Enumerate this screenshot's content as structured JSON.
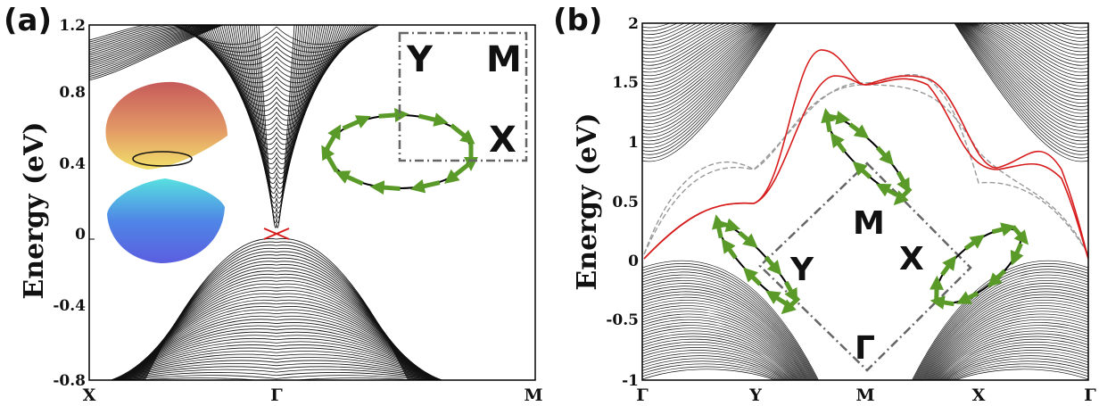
{
  "chart_data": [
    {
      "panel": "(a)",
      "type": "line",
      "ylabel": "Energy (eV)",
      "ylim": [
        -0.8,
        1.2
      ],
      "yticks": [
        "1.2",
        "0.8",
        "0.4",
        "0",
        "-0.4",
        "-0.8"
      ],
      "xticks": [
        "X",
        "Γ",
        "M"
      ],
      "series": [
        {
          "values_note": "bulk bands",
          "x": [
            0,
            0.2,
            0.38,
            0.42,
            0.47,
            0.5,
            0.53,
            0.58,
            0.62,
            0.8,
            1.0
          ],
          "y": [
            0.95,
            1.1,
            1.2,
            0.6,
            0.2,
            0.04,
            0.2,
            0.6,
            1.2,
            1.2,
            1.2
          ]
        },
        {
          "x": [
            0.11,
            0.25,
            0.4,
            0.47,
            0.5,
            0.53,
            0.6,
            0.75,
            0.9
          ],
          "y": [
            -0.8,
            -0.55,
            -0.2,
            -0.05,
            -0.02,
            -0.05,
            -0.2,
            -0.55,
            -0.8
          ]
        },
        {
          "x": [
            0.46,
            0.5,
            0.54
          ],
          "y": [
            0.04,
            -0.01,
            0.04
          ]
        },
        {
          "x": [
            0.46,
            0.5,
            0.54
          ],
          "y": [
            -0.04,
            -0.01,
            -0.04
          ]
        }
      ],
      "insets": {
        "bz_labels": [
          "Y",
          "M",
          "X"
        ]
      }
    },
    {
      "panel": "(b)",
      "type": "line",
      "ylabel": "Energy (eV)",
      "ylim": [
        -1,
        2
      ],
      "yticks": [
        "2",
        "1.5",
        "1",
        "0.5",
        "0",
        "-0.5",
        "-1"
      ],
      "xticks": [
        "Γ",
        "Y",
        "M",
        "X",
        "Γ"
      ],
      "series": [
        {
          "x": [
            0,
            0.25,
            0.5,
            0.75,
            1.0
          ],
          "y": [
            -0.05,
            0.45,
            1.45,
            0.75,
            -0.05
          ]
        },
        {
          "x": [
            0,
            0.25,
            0.5,
            0.75,
            1.0
          ],
          "y": [
            0.0,
            0.45,
            1.45,
            0.9,
            0.0
          ]
        },
        {
          "x": [
            0,
            0.25,
            0.5,
            0.75,
            1.0
          ],
          "y": [
            0.05,
            0.75,
            1.5,
            0.45,
            0.05
          ]
        },
        {
          "x": [
            0,
            0.25,
            0.5,
            0.75,
            1.0
          ],
          "y": [
            0.05,
            0.6,
            1.45,
            0.5,
            0.05
          ]
        }
      ],
      "insets": {
        "bz_labels": [
          "M",
          "Y",
          "X",
          "Γ"
        ]
      }
    }
  ]
}
